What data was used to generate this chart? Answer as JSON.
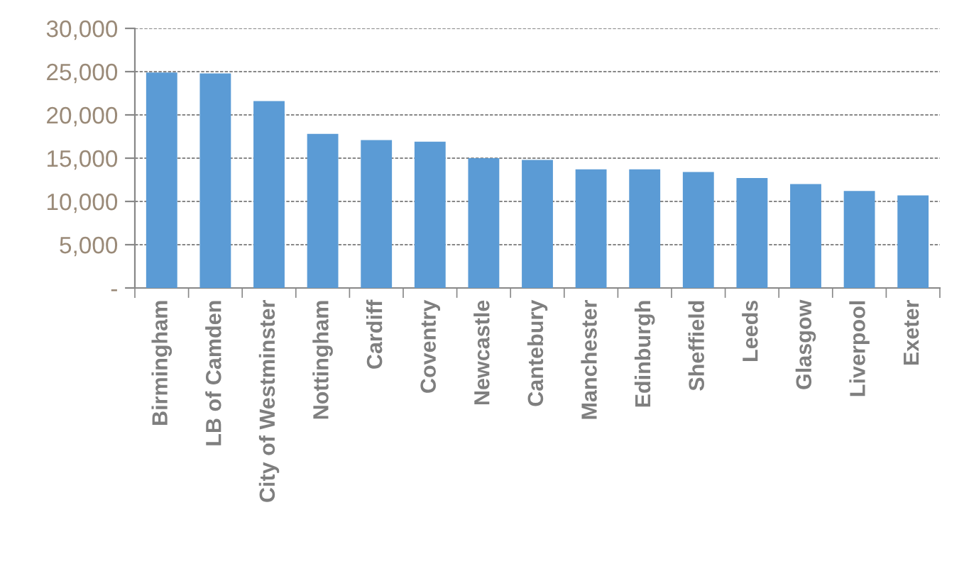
{
  "chart_data": {
    "type": "bar",
    "categories": [
      "Birmingham",
      "LB of Camden",
      "City of Westminster",
      "Nottingham",
      "Cardiff",
      "Coventry",
      "Newcastle",
      "Cantebury",
      "Manchester",
      "Edinburgh",
      "Sheffield",
      "Leeds",
      "Glasgow",
      "Liverpool",
      "Exeter"
    ],
    "values": [
      24900,
      24800,
      21600,
      17800,
      17100,
      16900,
      15000,
      14800,
      13700,
      13700,
      13400,
      12700,
      12000,
      11200,
      10700
    ],
    "color": "#5b9bd5",
    "ylim": [
      0,
      30000
    ],
    "yticks": [
      {
        "value": 0,
        "label": "-"
      },
      {
        "value": 5000,
        "label": "5,000"
      },
      {
        "value": 10000,
        "label": "10,000"
      },
      {
        "value": 15000,
        "label": "15,000"
      },
      {
        "value": 20000,
        "label": "20,000"
      },
      {
        "value": 25000,
        "label": "25,000"
      },
      {
        "value": 30000,
        "label": "30,000"
      }
    ],
    "grid": "y"
  }
}
